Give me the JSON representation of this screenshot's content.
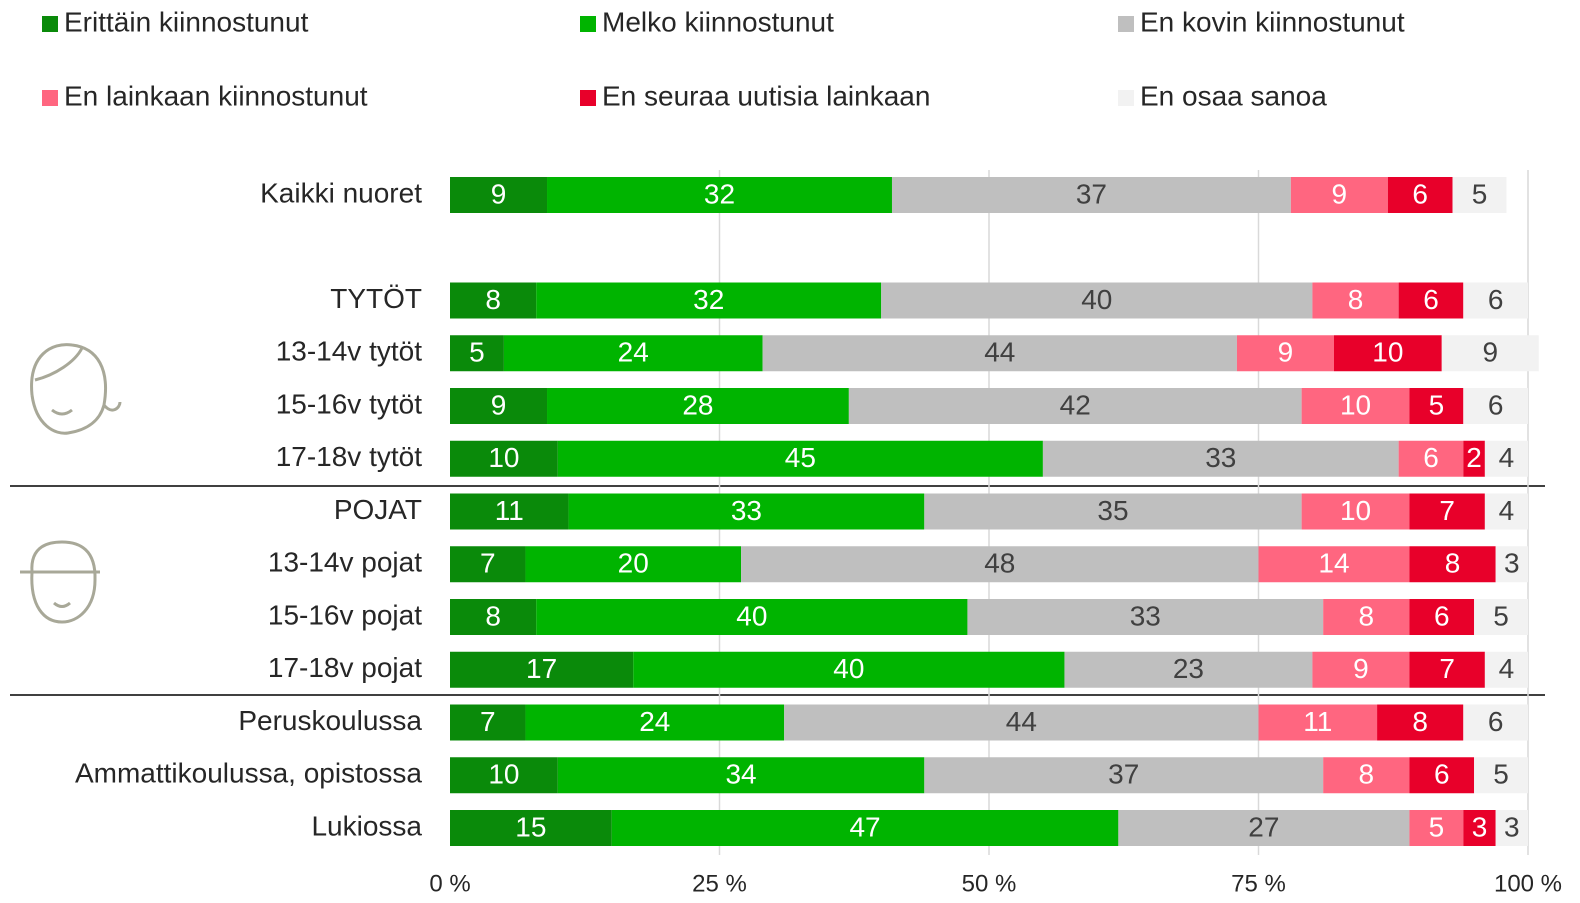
{
  "chart_data": {
    "type": "stacked_barh",
    "categories": [
      "Kaikki nuoret",
      null,
      "TYTÖT",
      "13-14v tytöt",
      "15-16v tytöt",
      "17-18v tytöt",
      "POJAT",
      "13-14v pojat",
      "15-16v pojat",
      "17-18v pojat",
      "Peruskoulussa",
      "Ammattikoulussa, opistossa",
      "Lukiossa"
    ],
    "series": [
      {
        "name": "Erittäin kiinnostunut",
        "color": "#0a8a0a",
        "values": [
          9,
          null,
          8,
          5,
          9,
          10,
          11,
          7,
          8,
          17,
          7,
          10,
          15
        ]
      },
      {
        "name": "Melko kiinnostunut",
        "color": "#00b400",
        "values": [
          32,
          null,
          32,
          24,
          28,
          45,
          33,
          20,
          40,
          40,
          24,
          34,
          47
        ]
      },
      {
        "name": "En kovin kiinnostunut",
        "color": "#bfbfbf",
        "values": [
          37,
          null,
          40,
          44,
          42,
          33,
          35,
          48,
          33,
          23,
          44,
          37,
          27
        ]
      },
      {
        "name": "En lainkaan kiinnostunut",
        "color": "#ff6680",
        "values": [
          9,
          null,
          8,
          9,
          10,
          6,
          10,
          14,
          8,
          9,
          11,
          8,
          5
        ]
      },
      {
        "name": "En seuraa uutisia lainkaan",
        "color": "#e8002a",
        "values": [
          6,
          null,
          6,
          10,
          5,
          2,
          7,
          8,
          6,
          7,
          8,
          6,
          3
        ]
      },
      {
        "name": "En osaa sanoa",
        "color": "#f2f2f2",
        "values": [
          5,
          null,
          6,
          9,
          6,
          4,
          4,
          3,
          5,
          4,
          6,
          5,
          3
        ]
      }
    ],
    "xlim": [
      0,
      100
    ],
    "xticks": [
      {
        "value": 0,
        "label": "0 %"
      },
      {
        "value": 25,
        "label": "25 %"
      },
      {
        "value": 50,
        "label": "50 %"
      },
      {
        "value": 75,
        "label": "75 %"
      },
      {
        "value": 100,
        "label": "100 %"
      }
    ],
    "grid": true
  }
}
